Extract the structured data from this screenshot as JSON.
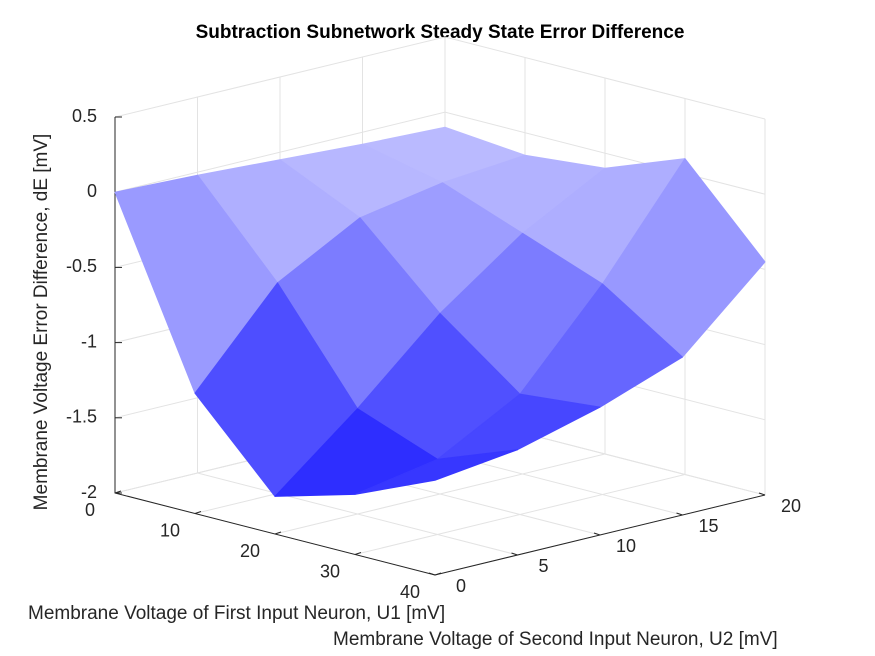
{
  "chart_data": {
    "type": "surface",
    "title": "Subtraction Subnetwork Steady State Error Difference",
    "xlabel": "Membrane Voltage of First Input Neuron, U1 [mV]",
    "ylabel": "Membrane Voltage of Second Input Neuron, U2 [mV]",
    "zlabel": "Membrane Voltage Error Difference, dE [mV]",
    "x": [
      0,
      10,
      20,
      30,
      40
    ],
    "y": [
      0,
      5,
      10,
      15,
      20
    ],
    "z": [
      [
        0,
        -0.02,
        -0.05,
        -0.08,
        -0.1
      ],
      [
        -1.2,
        -0.6,
        -0.3,
        -0.2,
        -0.15
      ],
      [
        -1.75,
        -1.3,
        -0.8,
        -0.4,
        -0.1
      ],
      [
        -1.6,
        -1.5,
        -1.2,
        -0.6,
        0.1
      ],
      [
        -1.37,
        -1.3,
        -1.15,
        -0.95,
        -0.45
      ]
    ],
    "xlim": [
      0,
      40
    ],
    "ylim": [
      0,
      20
    ],
    "zlim": [
      -2,
      0.5
    ],
    "xticks": [
      0,
      10,
      20,
      30,
      40
    ],
    "yticks": [
      0,
      5,
      10,
      15,
      20
    ],
    "zticks": [
      -2,
      -1.5,
      -1,
      -0.5,
      0,
      0.5
    ],
    "colormap": [
      "#0000ff",
      "#ffffff",
      "#ff0000"
    ],
    "grid": true
  }
}
